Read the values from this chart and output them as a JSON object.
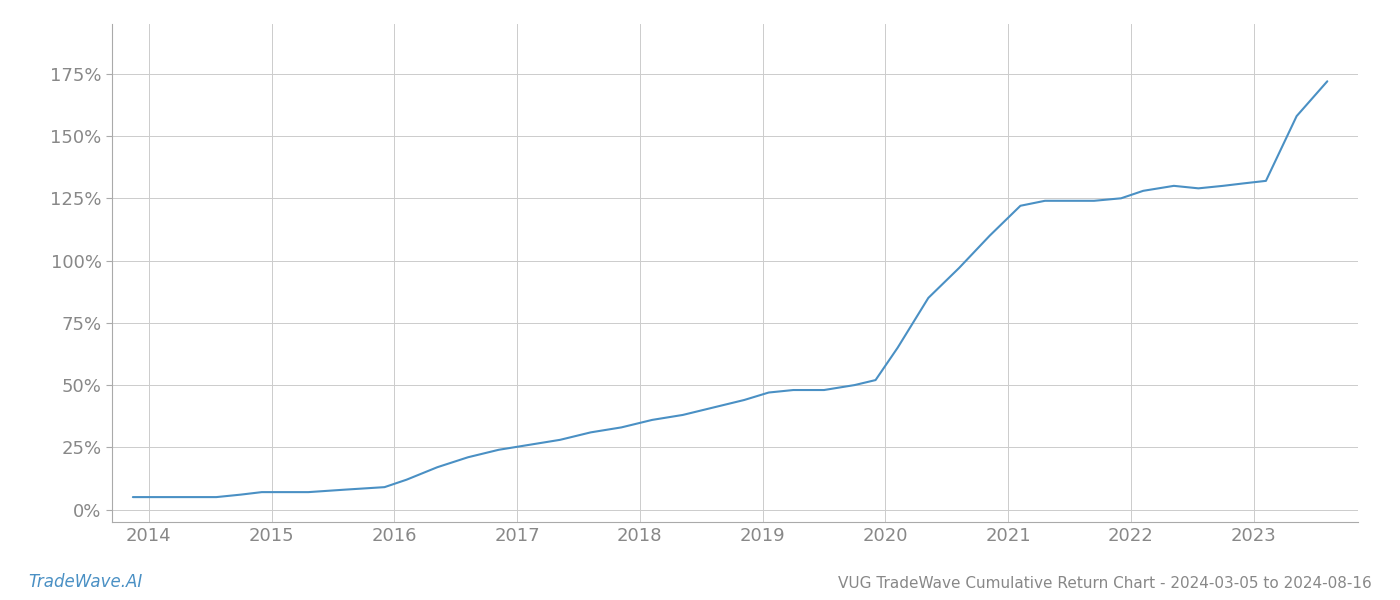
{
  "title": "VUG TradeWave Cumulative Return Chart - 2024-03-05 to 2024-08-16",
  "footer_left": "TradeWave.AI",
  "line_color": "#4a90c4",
  "background_color": "#ffffff",
  "grid_color": "#cccccc",
  "text_color": "#888888",
  "x_values": [
    2013.87,
    2014.0,
    2014.15,
    2014.35,
    2014.55,
    2014.75,
    2014.92,
    2015.1,
    2015.3,
    2015.6,
    2015.92,
    2016.1,
    2016.35,
    2016.6,
    2016.85,
    2017.1,
    2017.35,
    2017.6,
    2017.85,
    2018.1,
    2018.35,
    2018.6,
    2018.85,
    2019.05,
    2019.25,
    2019.5,
    2019.75,
    2019.92,
    2020.1,
    2020.35,
    2020.6,
    2020.85,
    2021.1,
    2021.3,
    2021.5,
    2021.7,
    2021.92,
    2022.1,
    2022.35,
    2022.55,
    2022.75,
    2022.92,
    2023.1,
    2023.35,
    2023.6
  ],
  "y_values": [
    5,
    5,
    5,
    5,
    5,
    6,
    7,
    7,
    7,
    8,
    9,
    12,
    17,
    21,
    24,
    26,
    28,
    31,
    33,
    36,
    38,
    41,
    44,
    47,
    48,
    48,
    50,
    52,
    65,
    85,
    97,
    110,
    122,
    124,
    124,
    124,
    125,
    128,
    130,
    129,
    130,
    131,
    132,
    158,
    172
  ],
  "xlim": [
    2013.7,
    2023.85
  ],
  "ylim": [
    -5,
    195
  ],
  "yticks": [
    0,
    25,
    50,
    75,
    100,
    125,
    150,
    175
  ],
  "xticks": [
    2014,
    2015,
    2016,
    2017,
    2018,
    2019,
    2020,
    2021,
    2022,
    2023
  ],
  "line_width": 1.5,
  "figsize": [
    14,
    6
  ],
  "dpi": 100
}
